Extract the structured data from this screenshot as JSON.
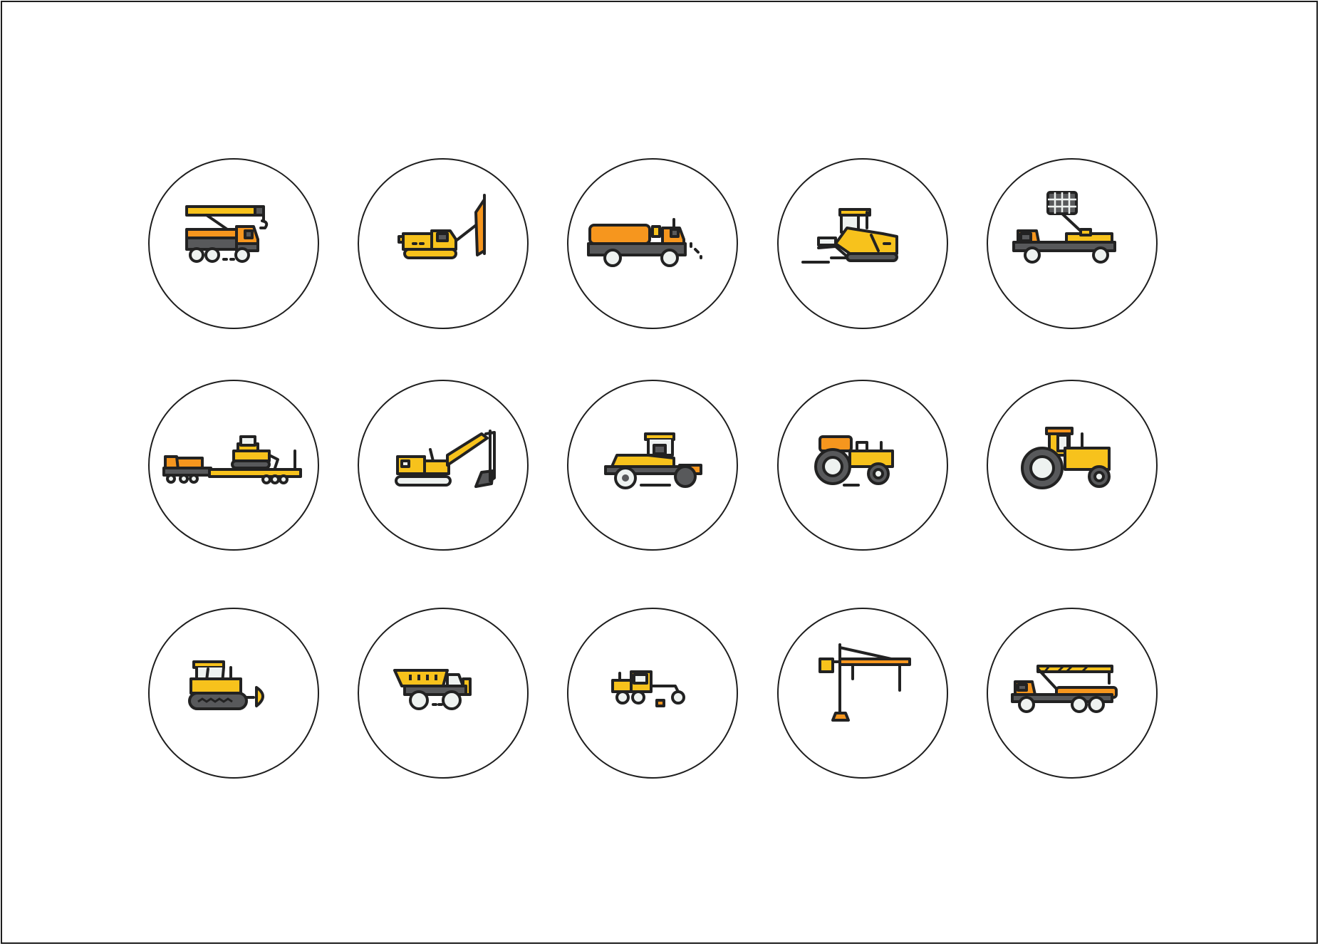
{
  "palette": {
    "yellow": "#f7c21c",
    "orange": "#f6961e",
    "gray": "#58595b",
    "light": "#eef2f0",
    "outline": "#222222"
  },
  "icons": [
    {
      "name": "truck-crane-icon"
    },
    {
      "name": "pile-driver-icon"
    },
    {
      "name": "vacuum-truck-icon"
    },
    {
      "name": "asphalt-paver-icon"
    },
    {
      "name": "aerial-lift-truck-icon"
    },
    {
      "name": "heavy-hauler-trailer-icon"
    },
    {
      "name": "excavator-icon"
    },
    {
      "name": "road-roller-icon"
    },
    {
      "name": "small-tractor-icon"
    },
    {
      "name": "large-tractor-icon"
    },
    {
      "name": "bulldozer-icon"
    },
    {
      "name": "mining-dump-truck-icon"
    },
    {
      "name": "motor-grader-icon"
    },
    {
      "name": "tower-crane-icon"
    },
    {
      "name": "flatbed-crane-truck-icon"
    }
  ]
}
